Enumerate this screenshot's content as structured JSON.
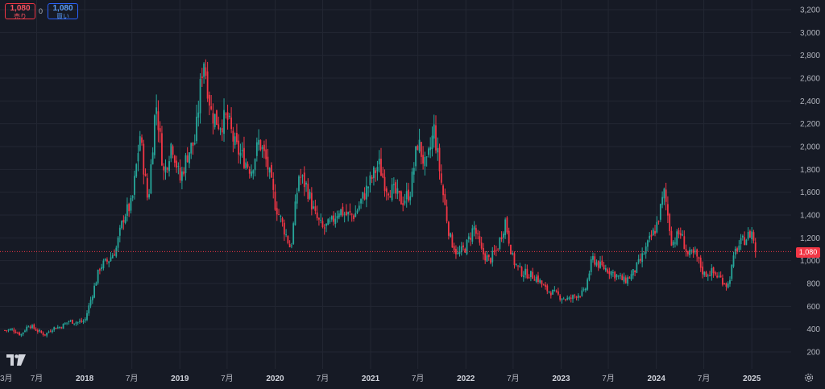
{
  "order_panel": {
    "sell": {
      "price": "1,080",
      "label": "売り"
    },
    "spread": "0",
    "buy": {
      "price": "1,080",
      "label": "買い"
    }
  },
  "last_price_label": "1,080",
  "colors": {
    "up": "#26a69a",
    "down": "#f23645",
    "background": "#161a25",
    "grid": "#232733"
  },
  "icons": {
    "logo": "tradingview-logo-icon",
    "settings": "gear-icon"
  },
  "chart_data": {
    "type": "candlestick",
    "title": "",
    "xlabel": "",
    "ylabel": "",
    "last_price": 1080,
    "ylim": [
      100,
      3300
    ],
    "y_ticks": [
      200,
      400,
      600,
      800,
      1000,
      1200,
      1400,
      1600,
      1800,
      2000,
      2200,
      2400,
      2600,
      2800,
      3000,
      3200
    ],
    "y_tick_labels": [
      "200",
      "400",
      "600",
      "800",
      "1,000",
      "1,200",
      "1,400",
      "1,600",
      "1,800",
      "2,000",
      "2,200",
      "2,400",
      "2,600",
      "2,800",
      "3,000",
      "3,200"
    ],
    "xlim": [
      "2017-03-01",
      "2025-03-31"
    ],
    "x_ticks": [
      {
        "date": "2017-07-01",
        "label": "7月"
      },
      {
        "date": "2018-01-01",
        "label": "2018"
      },
      {
        "date": "2018-07-01",
        "label": "7月"
      },
      {
        "date": "2019-01-01",
        "label": "2019"
      },
      {
        "date": "2019-07-01",
        "label": "7月"
      },
      {
        "date": "2020-01-01",
        "label": "2020"
      },
      {
        "date": "2020-07-01",
        "label": "7月"
      },
      {
        "date": "2021-01-01",
        "label": "2021"
      },
      {
        "date": "2021-07-01",
        "label": "7月"
      },
      {
        "date": "2022-01-01",
        "label": "2022"
      },
      {
        "date": "2022-07-01",
        "label": "7月"
      },
      {
        "date": "2023-01-01",
        "label": "2023"
      },
      {
        "date": "2023-07-01",
        "label": "7月"
      },
      {
        "date": "2024-01-01",
        "label": "2024"
      },
      {
        "date": "2024-07-01",
        "label": "7月"
      },
      {
        "date": "2025-01-01",
        "label": "2025"
      }
    ],
    "grid": true,
    "close_path": [
      [
        "2017-03-01",
        390
      ],
      [
        "2017-04-01",
        395
      ],
      [
        "2017-05-01",
        350
      ],
      [
        "2017-06-01",
        440
      ],
      [
        "2017-07-01",
        390
      ],
      [
        "2017-08-01",
        350
      ],
      [
        "2017-09-01",
        410
      ],
      [
        "2017-10-01",
        420
      ],
      [
        "2017-11-01",
        470
      ],
      [
        "2017-12-01",
        460
      ],
      [
        "2018-01-01",
        470
      ],
      [
        "2018-02-01",
        720
      ],
      [
        "2018-03-01",
        950
      ],
      [
        "2018-04-01",
        1000
      ],
      [
        "2018-05-01",
        1100
      ],
      [
        "2018-06-01",
        1400
      ],
      [
        "2018-07-01",
        1500
      ],
      [
        "2018-08-01",
        2100
      ],
      [
        "2018-09-01",
        1500
      ],
      [
        "2018-10-01",
        2400
      ],
      [
        "2018-11-01",
        1750
      ],
      [
        "2018-12-01",
        2050
      ],
      [
        "2019-01-01",
        1700
      ],
      [
        "2019-02-01",
        1950
      ],
      [
        "2019-03-01",
        2050
      ],
      [
        "2019-04-01",
        2800
      ],
      [
        "2019-05-01",
        2300
      ],
      [
        "2019-06-01",
        2200
      ],
      [
        "2019-07-01",
        2250
      ],
      [
        "2019-08-01",
        2000
      ],
      [
        "2019-09-01",
        1900
      ],
      [
        "2019-10-01",
        1800
      ],
      [
        "2019-11-01",
        2050
      ],
      [
        "2019-12-01",
        1850
      ],
      [
        "2020-01-01",
        1500
      ],
      [
        "2020-02-01",
        1300
      ],
      [
        "2020-03-01",
        1100
      ],
      [
        "2020-04-01",
        1750
      ],
      [
        "2020-05-01",
        1650
      ],
      [
        "2020-06-01",
        1400
      ],
      [
        "2020-07-01",
        1280
      ],
      [
        "2020-08-01",
        1320
      ],
      [
        "2020-09-01",
        1450
      ],
      [
        "2020-10-01",
        1400
      ],
      [
        "2020-11-01",
        1400
      ],
      [
        "2020-12-01",
        1550
      ],
      [
        "2021-01-01",
        1700
      ],
      [
        "2021-02-01",
        1850
      ],
      [
        "2021-03-01",
        1650
      ],
      [
        "2021-04-01",
        1600
      ],
      [
        "2021-05-01",
        1520
      ],
      [
        "2021-06-01",
        1600
      ],
      [
        "2021-07-01",
        2050
      ],
      [
        "2021-08-01",
        1800
      ],
      [
        "2021-09-01",
        2150
      ],
      [
        "2021-10-01",
        1650
      ],
      [
        "2021-11-01",
        1200
      ],
      [
        "2021-12-01",
        1050
      ],
      [
        "2022-01-01",
        1120
      ],
      [
        "2022-02-01",
        1300
      ],
      [
        "2022-03-01",
        1080
      ],
      [
        "2022-04-01",
        1000
      ],
      [
        "2022-05-01",
        1100
      ],
      [
        "2022-06-01",
        1350
      ],
      [
        "2022-07-01",
        1000
      ],
      [
        "2022-08-01",
        900
      ],
      [
        "2022-09-01",
        880
      ],
      [
        "2022-10-01",
        850
      ],
      [
        "2022-11-01",
        750
      ],
      [
        "2022-12-01",
        720
      ],
      [
        "2023-01-01",
        680
      ],
      [
        "2023-02-01",
        660
      ],
      [
        "2023-03-01",
        700
      ],
      [
        "2023-04-01",
        720
      ],
      [
        "2023-05-01",
        1020
      ],
      [
        "2023-06-01",
        950
      ],
      [
        "2023-07-01",
        920
      ],
      [
        "2023-08-01",
        870
      ],
      [
        "2023-09-01",
        820
      ],
      [
        "2023-10-01",
        880
      ],
      [
        "2023-11-01",
        1000
      ],
      [
        "2023-12-01",
        1150
      ],
      [
        "2024-01-01",
        1300
      ],
      [
        "2024-02-01",
        1600
      ],
      [
        "2024-03-01",
        1150
      ],
      [
        "2024-04-01",
        1250
      ],
      [
        "2024-05-01",
        1050
      ],
      [
        "2024-06-01",
        1050
      ],
      [
        "2024-07-01",
        880
      ],
      [
        "2024-08-01",
        900
      ],
      [
        "2024-09-01",
        850
      ],
      [
        "2024-10-01",
        780
      ],
      [
        "2024-11-01",
        1100
      ],
      [
        "2024-12-01",
        1180
      ],
      [
        "2025-01-01",
        1250
      ],
      [
        "2025-01-20",
        1080
      ]
    ]
  }
}
